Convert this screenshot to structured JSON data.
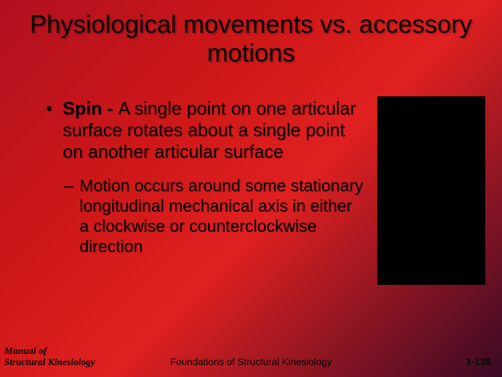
{
  "title": "Physiological movements vs. accessory motions",
  "bullet": {
    "term": "Spin - ",
    "def": "A single point on one articular surface rotates about a single point on another articular surface"
  },
  "sub": "Motion occurs around some stationary longitudinal mechanical axis in either a clockwise or counterclockwise direction",
  "footer": {
    "left_line1": "Manual of",
    "left_line2": "Structural Kinesiology",
    "center": "Foundations of Structural Kinesiology",
    "right": "1-135"
  },
  "colors": {
    "bg_start": "#b01020",
    "bg_mid": "#e02020",
    "bg_end": "#3a0a25",
    "text": "#000000"
  }
}
